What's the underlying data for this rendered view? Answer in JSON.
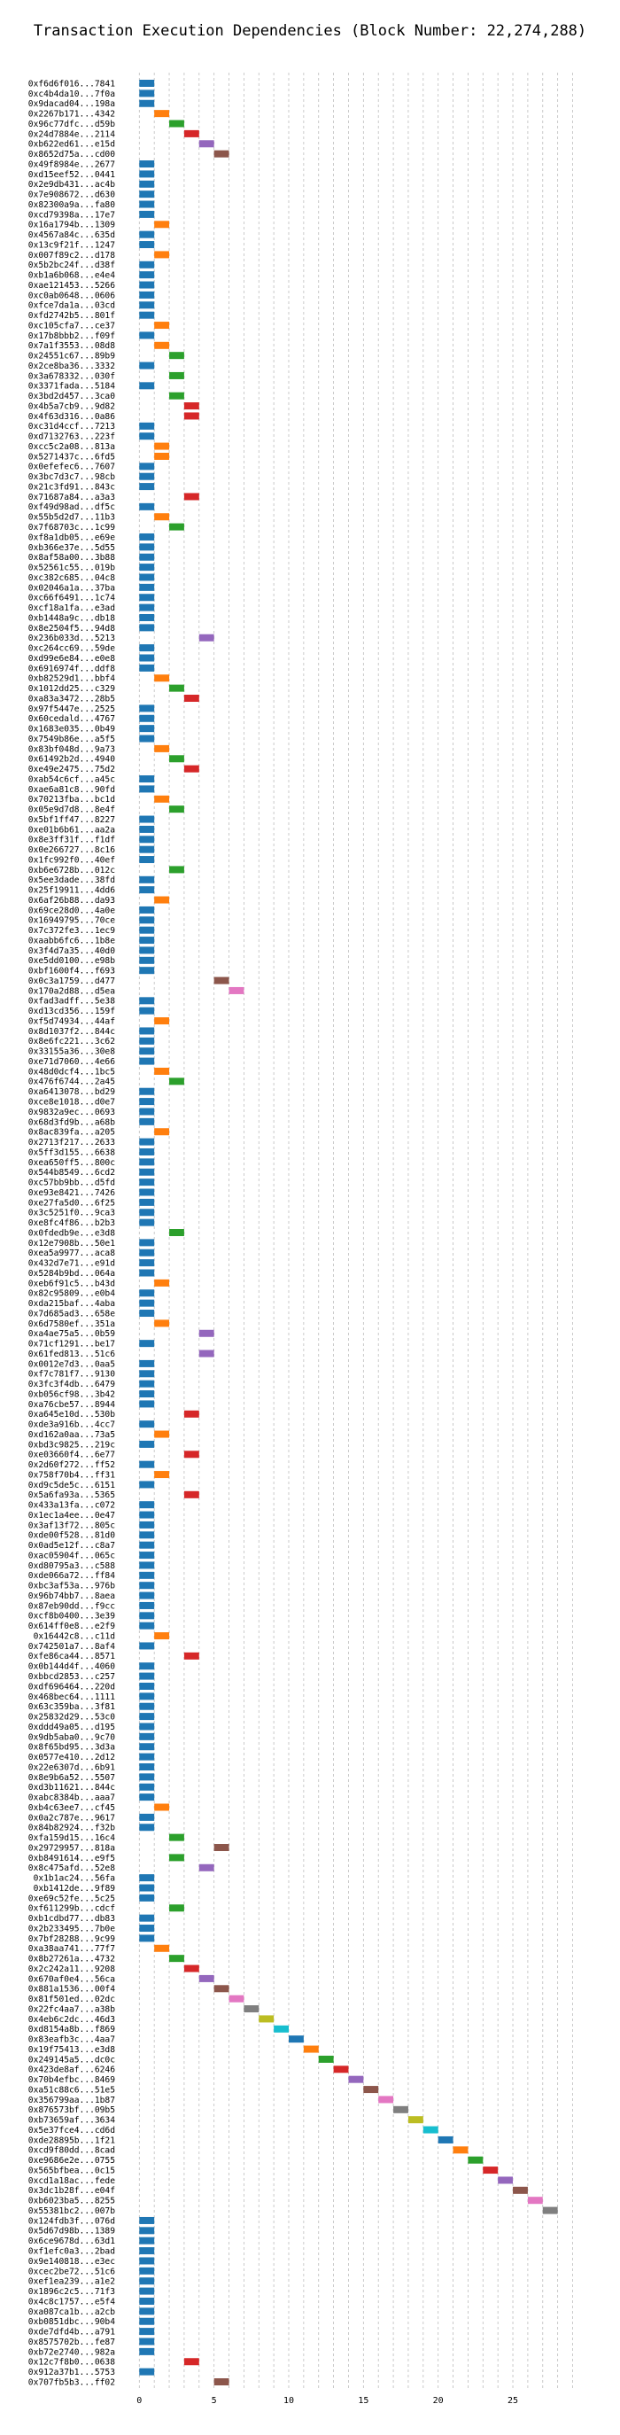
{
  "chart_data": {
    "type": "gantt",
    "title": "Transaction Execution Dependencies (Block Number: 22,274,288)",
    "xlabel": "",
    "ylabel": "",
    "xlim": [
      -1.5,
      29.8
    ],
    "x_ticks": [
      0,
      5,
      10,
      15,
      20,
      25
    ],
    "x_tick_labels": [
      "0",
      "5",
      "10",
      "15",
      "20",
      "25"
    ],
    "grid": "vertical-dashed",
    "bar_width": 1,
    "colors": [
      "#1f77b4",
      "#ff7f0e",
      "#2ca02c",
      "#d62728",
      "#9467bd",
      "#8c564b",
      "#e377c2",
      "#7f7f7f",
      "#bcbd22",
      "#17becf"
    ],
    "transactions": [
      {
        "label": "0xf6d6f016...7841",
        "start": 0
      },
      {
        "label": "0xc4b4da10...7f0a",
        "start": 0
      },
      {
        "label": "0x9dacad04...198a",
        "start": 0
      },
      {
        "label": "0x2267b171...4342",
        "start": 1
      },
      {
        "label": "0x96c77dfc...d59b",
        "start": 2
      },
      {
        "label": "0x24d7884e...2114",
        "start": 3
      },
      {
        "label": "0xb622ed61...e15d",
        "start": 4
      },
      {
        "label": "0x8652d75a...cd00",
        "start": 5
      },
      {
        "label": "0x49f8984e...2677",
        "start": 0
      },
      {
        "label": "0xd15eef52...0441",
        "start": 0
      },
      {
        "label": "0x2e9db431...ac4b",
        "start": 0
      },
      {
        "label": "0x7e908672...d630",
        "start": 0
      },
      {
        "label": "0x82300a9a...fa80",
        "start": 0
      },
      {
        "label": "0xcd79398a...17e7",
        "start": 0
      },
      {
        "label": "0x16a1794b...1309",
        "start": 1
      },
      {
        "label": "0x4567a84c...635d",
        "start": 0
      },
      {
        "label": "0x13c9f21f...1247",
        "start": 0
      },
      {
        "label": "0x007f89c2...d178",
        "start": 1
      },
      {
        "label": "0x5b2bc24f...d38f",
        "start": 0
      },
      {
        "label": "0xb1a6b068...e4e4",
        "start": 0
      },
      {
        "label": "0xae121453...5266",
        "start": 0
      },
      {
        "label": "0xc0ab0648...0606",
        "start": 0
      },
      {
        "label": "0xfce7da1a...03cd",
        "start": 0
      },
      {
        "label": "0xfd2742b5...801f",
        "start": 0
      },
      {
        "label": "0xc105cfa7...ce37",
        "start": 1
      },
      {
        "label": "0x17b8bbb2...f09f",
        "start": 0
      },
      {
        "label": "0x7a1f3553...08d8",
        "start": 1
      },
      {
        "label": "0x24551c67...89b9",
        "start": 2
      },
      {
        "label": "0x2ce8ba36...3332",
        "start": 0
      },
      {
        "label": "0x3a678332...030f",
        "start": 2
      },
      {
        "label": "0x3371fada...5184",
        "start": 0
      },
      {
        "label": "0x3bd2d457...3ca0",
        "start": 2
      },
      {
        "label": "0x4b5a7cb9...9d82",
        "start": 3
      },
      {
        "label": "0x4f63d316...0a86",
        "start": 3
      },
      {
        "label": "0xc31d4ccf...7213",
        "start": 0
      },
      {
        "label": "0xd7132763...223f",
        "start": 0
      },
      {
        "label": "0xcc5c2a08...813a",
        "start": 1
      },
      {
        "label": "0x5271437c...6fd5",
        "start": 1
      },
      {
        "label": "0x0efefec6...7607",
        "start": 0
      },
      {
        "label": "0x3bc7d3c7...98cb",
        "start": 0
      },
      {
        "label": "0x21c3fd91...843c",
        "start": 0
      },
      {
        "label": "0x71687a84...a3a3",
        "start": 3
      },
      {
        "label": "0xf49d98ad...df5c",
        "start": 0
      },
      {
        "label": "0x55b5d2d7...11b3",
        "start": 1
      },
      {
        "label": "0x7f68703c...1c99",
        "start": 2
      },
      {
        "label": "0xf8a1db05...e69e",
        "start": 0
      },
      {
        "label": "0xb366e37e...5d55",
        "start": 0
      },
      {
        "label": "0x8af58a00...3b88",
        "start": 0
      },
      {
        "label": "0x52561c55...019b",
        "start": 0
      },
      {
        "label": "0xc382c685...04c8",
        "start": 0
      },
      {
        "label": "0x02046a1a...37ba",
        "start": 0
      },
      {
        "label": "0xc66f6491...1c74",
        "start": 0
      },
      {
        "label": "0xcf18a1fa...e3ad",
        "start": 0
      },
      {
        "label": "0xb1448a9c...db18",
        "start": 0
      },
      {
        "label": "0x8e2504f5...94d8",
        "start": 0
      },
      {
        "label": "0x236b033d...5213",
        "start": 4
      },
      {
        "label": "0xc264cc69...59de",
        "start": 0
      },
      {
        "label": "0xd99e6e84...e0e8",
        "start": 0
      },
      {
        "label": "0x6916974f...ddf8",
        "start": 0
      },
      {
        "label": "0xb82529d1...bbf4",
        "start": 1
      },
      {
        "label": "0x1012dd25...c329",
        "start": 2
      },
      {
        "label": "0xa83a3472...28b5",
        "start": 3
      },
      {
        "label": "0x97f5447e...2525",
        "start": 0
      },
      {
        "label": "0x60cedald...4767",
        "start": 0
      },
      {
        "label": "0x1683e035...0b49",
        "start": 0
      },
      {
        "label": "0x7549b86e...a5f5",
        "start": 0
      },
      {
        "label": "0x83bf048d...9a73",
        "start": 1
      },
      {
        "label": "0x61492b2d...4940",
        "start": 2
      },
      {
        "label": "0xe49e2475...75d2",
        "start": 3
      },
      {
        "label": "0xab54c6cf...a45c",
        "start": 0
      },
      {
        "label": "0xae6a81c8...90fd",
        "start": 0
      },
      {
        "label": "0x70213fba...bc1d",
        "start": 1
      },
      {
        "label": "0x05e9d7d8...8e4f",
        "start": 2
      },
      {
        "label": "0x5bf1ff47...8227",
        "start": 0
      },
      {
        "label": "0xe01b6b61...aa2a",
        "start": 0
      },
      {
        "label": "0x8e3ff31f...f1df",
        "start": 0
      },
      {
        "label": "0x0e266727...8c16",
        "start": 0
      },
      {
        "label": "0x1fc992f0...40ef",
        "start": 0
      },
      {
        "label": "0xb6e6728b...012c",
        "start": 2
      },
      {
        "label": "0x5ee3dade...38fd",
        "start": 0
      },
      {
        "label": "0x25f19911...4dd6",
        "start": 0
      },
      {
        "label": "0x6af26b88...da93",
        "start": 1
      },
      {
        "label": "0x69ce28d0...4a0e",
        "start": 0
      },
      {
        "label": "0x16949795...70ce",
        "start": 0
      },
      {
        "label": "0x7c372fe3...1ec9",
        "start": 0
      },
      {
        "label": "0xaabb6fc6...1b8e",
        "start": 0
      },
      {
        "label": "0x3f4d7a35...40d0",
        "start": 0
      },
      {
        "label": "0xe5dd0100...e98b",
        "start": 0
      },
      {
        "label": "0xbf1600f4...f693",
        "start": 0
      },
      {
        "label": "0x0c3a1759...d477",
        "start": 5
      },
      {
        "label": "0x170a2d88...d5ea",
        "start": 6
      },
      {
        "label": "0xfad3adff...5e38",
        "start": 0
      },
      {
        "label": "0xd13cd356...159f",
        "start": 0
      },
      {
        "label": "0xf5d74934...44af",
        "start": 1
      },
      {
        "label": "0x8d1037f2...844c",
        "start": 0
      },
      {
        "label": "0x8e6fc221...3c62",
        "start": 0
      },
      {
        "label": "0x33155a36...30e8",
        "start": 0
      },
      {
        "label": "0xe71d7060...4e66",
        "start": 0
      },
      {
        "label": "0x48d0dcf4...1bc5",
        "start": 1
      },
      {
        "label": "0x476f6744...2a45",
        "start": 2
      },
      {
        "label": "0xa6413078...bd29",
        "start": 0
      },
      {
        "label": "0xce8e1018...d0e7",
        "start": 0
      },
      {
        "label": "0x9832a9ec...0693",
        "start": 0
      },
      {
        "label": "0x68d3fd9b...a68b",
        "start": 0
      },
      {
        "label": "0x8ac839fa...a205",
        "start": 1
      },
      {
        "label": "0x2713f217...2633",
        "start": 0
      },
      {
        "label": "0x5ff3d155...6638",
        "start": 0
      },
      {
        "label": "0xea650ff5...800c",
        "start": 0
      },
      {
        "label": "0x544b8549...6cd2",
        "start": 0
      },
      {
        "label": "0xc57bb9bb...d5fd",
        "start": 0
      },
      {
        "label": "0xe93e8421...7426",
        "start": 0
      },
      {
        "label": "0xe27fa5d0...6f25",
        "start": 0
      },
      {
        "label": "0x3c5251f0...9ca3",
        "start": 0
      },
      {
        "label": "0xe8fc4f86...b2b3",
        "start": 0
      },
      {
        "label": "0x0fdedb9e...e3d8",
        "start": 2
      },
      {
        "label": "0x12e7908b...50e1",
        "start": 0
      },
      {
        "label": "0xea5a9977...aca8",
        "start": 0
      },
      {
        "label": "0x432d7e71...e91d",
        "start": 0
      },
      {
        "label": "0x5284b9bd...064a",
        "start": 0
      },
      {
        "label": "0xeb6f91c5...b43d",
        "start": 1
      },
      {
        "label": "0x82c95809...e0b4",
        "start": 0
      },
      {
        "label": "0xda215baf...4aba",
        "start": 0
      },
      {
        "label": "0x7d685ad3...658e",
        "start": 0
      },
      {
        "label": "0x6d7580ef...351a",
        "start": 1
      },
      {
        "label": "0xa4ae75a5...0b59",
        "start": 4
      },
      {
        "label": "0x71cf1291...be17",
        "start": 0
      },
      {
        "label": "0x61fed813...51c6",
        "start": 4
      },
      {
        "label": "0x0012e7d3...0aa5",
        "start": 0
      },
      {
        "label": "0xf7c781f7...9130",
        "start": 0
      },
      {
        "label": "0x3fc3f4db...6479",
        "start": 0
      },
      {
        "label": "0xb056cf98...3b42",
        "start": 0
      },
      {
        "label": "0xa76cbe57...8944",
        "start": 0
      },
      {
        "label": "0xa645e10d...530b",
        "start": 3
      },
      {
        "label": "0xde3a916b...4cc7",
        "start": 0
      },
      {
        "label": "0xd162a0aa...73a5",
        "start": 1
      },
      {
        "label": "0xbd3c9825...219c",
        "start": 0
      },
      {
        "label": "0xe03660f4...6e77",
        "start": 3
      },
      {
        "label": "0x2d60f272...ff52",
        "start": 0
      },
      {
        "label": "0x758f70b4...ff31",
        "start": 1
      },
      {
        "label": "0xd9c5de5c...6151",
        "start": 0
      },
      {
        "label": "0x5a6fa93a...5365",
        "start": 3
      },
      {
        "label": "0x433a13fa...c072",
        "start": 0
      },
      {
        "label": "0x1ec1a4ee...0e47",
        "start": 0
      },
      {
        "label": "0x3af13f72...805c",
        "start": 0
      },
      {
        "label": "0xde00f528...81d0",
        "start": 0
      },
      {
        "label": "0x0ad5e12f...c8a7",
        "start": 0
      },
      {
        "label": "0xac05904f...065c",
        "start": 0
      },
      {
        "label": "0xd80795a3...c588",
        "start": 0
      },
      {
        "label": "0xde066a72...ff84",
        "start": 0
      },
      {
        "label": "0xbc3af53a...976b",
        "start": 0
      },
      {
        "label": "0x96b74bb7...8aea",
        "start": 0
      },
      {
        "label": "0x87eb90dd...f9cc",
        "start": 0
      },
      {
        "label": "0xcf8b0400...3e39",
        "start": 0
      },
      {
        "label": "0x614ff0e8...e2f9",
        "start": 0
      },
      {
        "label": "0x16442c8...c11d",
        "start": 1
      },
      {
        "label": "0x742501a7...8af4",
        "start": 0
      },
      {
        "label": "0xfe86ca44...8571",
        "start": 3
      },
      {
        "label": "0x0b144d4f...4060",
        "start": 0
      },
      {
        "label": "0xbbcd2853...c257",
        "start": 0
      },
      {
        "label": "0xdf696464...220d",
        "start": 0
      },
      {
        "label": "0x468bec64...1111",
        "start": 0
      },
      {
        "label": "0x63c359ba...3f81",
        "start": 0
      },
      {
        "label": "0x25832d29...53c0",
        "start": 0
      },
      {
        "label": "0xddd49a05...d195",
        "start": 0
      },
      {
        "label": "0x9db5aba0...9c70",
        "start": 0
      },
      {
        "label": "0x8f65bd95...3d3a",
        "start": 0
      },
      {
        "label": "0x0577e410...2d12",
        "start": 0
      },
      {
        "label": "0x22e6307d...6b91",
        "start": 0
      },
      {
        "label": "0x8e9b6a52...5507",
        "start": 0
      },
      {
        "label": "0xd3b11621...844c",
        "start": 0
      },
      {
        "label": "0xabc8384b...aaa7",
        "start": 0
      },
      {
        "label": "0xb4c63ee7...cf45",
        "start": 1
      },
      {
        "label": "0x0a2c787e...9617",
        "start": 0
      },
      {
        "label": "0x84b82924...f32b",
        "start": 0
      },
      {
        "label": "0xfa159d15...16c4",
        "start": 2
      },
      {
        "label": "0x29729957...818a",
        "start": 5
      },
      {
        "label": "0xb8491614...e9f5",
        "start": 2
      },
      {
        "label": "0x8c475afd...52e8",
        "start": 4
      },
      {
        "label": "0x1b1ac24...56fa",
        "start": 0
      },
      {
        "label": "0xb1412de...9f89",
        "start": 0
      },
      {
        "label": "0xe69c52fe...5c25",
        "start": 0
      },
      {
        "label": "0xf611299b...cdcf",
        "start": 2
      },
      {
        "label": "0xb1cdbd77...db83",
        "start": 0
      },
      {
        "label": "0x2b233495...7b0e",
        "start": 0
      },
      {
        "label": "0x7bf28288...9c99",
        "start": 0
      },
      {
        "label": "0xa38aa741...77f7",
        "start": 1
      },
      {
        "label": "0x8b27261a...4732",
        "start": 2
      },
      {
        "label": "0x2c242a11...9208",
        "start": 3
      },
      {
        "label": "0x670af0e4...56ca",
        "start": 4
      },
      {
        "label": "0x881a1536...00f4",
        "start": 5
      },
      {
        "label": "0x81f501ed...02dc",
        "start": 6
      },
      {
        "label": "0x22fc4aa7...a38b",
        "start": 7
      },
      {
        "label": "0x4eb6c2dc...46d3",
        "start": 8
      },
      {
        "label": "0xd8154a8b...f869",
        "start": 9
      },
      {
        "label": "0x83eafb3c...4aa7",
        "start": 10
      },
      {
        "label": "0x19f75413...e3d8",
        "start": 11
      },
      {
        "label": "0x249145a5...dc0c",
        "start": 12
      },
      {
        "label": "0x423de8af...6246",
        "start": 13
      },
      {
        "label": "0x70b4efbc...8469",
        "start": 14
      },
      {
        "label": "0xa51c88c6...51e5",
        "start": 15
      },
      {
        "label": "0x356799aa...1b87",
        "start": 16
      },
      {
        "label": "0x876573bf...09b5",
        "start": 17
      },
      {
        "label": "0xb73659af...3634",
        "start": 18
      },
      {
        "label": "0x5e37fce4...cd6d",
        "start": 19
      },
      {
        "label": "0xde28895b...1f21",
        "start": 20
      },
      {
        "label": "0xcd9f80dd...8cad",
        "start": 21
      },
      {
        "label": "0xe9686e2e...0755",
        "start": 22
      },
      {
        "label": "0x565bfbea...0c15",
        "start": 23
      },
      {
        "label": "0xcd1a18ac...fede",
        "start": 24
      },
      {
        "label": "0x3dc1b28f...e04f",
        "start": 25
      },
      {
        "label": "0xb6023ba5...8255",
        "start": 26
      },
      {
        "label": "0x55381bc2...007b",
        "start": 27
      },
      {
        "label": "0x124fdb3f...076d",
        "start": 0
      },
      {
        "label": "0x5d67d98b...1389",
        "start": 0
      },
      {
        "label": "0x6ce9678d...63d1",
        "start": 0
      },
      {
        "label": "0xf1efc0a3...2bad",
        "start": 0
      },
      {
        "label": "0x9e140818...e3ec",
        "start": 0
      },
      {
        "label": "0xcec2be72...51c6",
        "start": 0
      },
      {
        "label": "0xef1ea239...a1e2",
        "start": 0
      },
      {
        "label": "0x1896c2c5...71f3",
        "start": 0
      },
      {
        "label": "0x4c8c1757...e5f4",
        "start": 0
      },
      {
        "label": "0xa087ca1b...a2cb",
        "start": 0
      },
      {
        "label": "0xb0851dbc...90b4",
        "start": 0
      },
      {
        "label": "0xde7dfd4b...a791",
        "start": 0
      },
      {
        "label": "0x8575702b...fe87",
        "start": 0
      },
      {
        "label": "0xb72e2740...982a",
        "start": 0
      },
      {
        "label": "0x12c7f8b0...0638",
        "start": 3
      },
      {
        "label": "0x912a37b1...5753",
        "start": 0
      },
      {
        "label": "0x707fb5b3...ff02",
        "start": 5
      }
    ]
  }
}
